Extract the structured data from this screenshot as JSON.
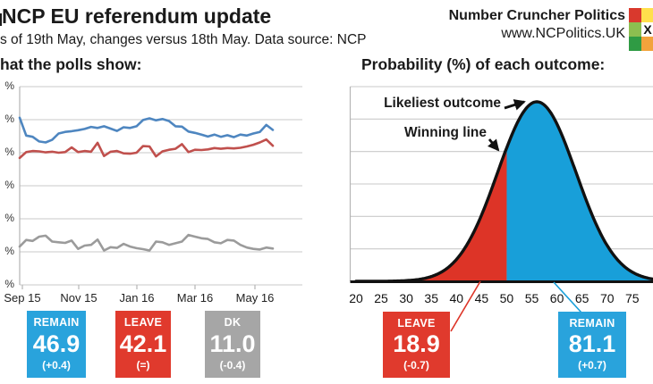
{
  "header": {
    "title": "NCP EU referendum update",
    "subtitle": "s of 19th May, changes versus 18th May. Data source: NCP",
    "brand": "Number Cruncher Politics",
    "website": "www.NCPolitics.UK"
  },
  "logo": {
    "mark": "X",
    "cells": [
      [
        "#d9392d",
        "#ffe04c"
      ],
      [
        "#8cbe50",
        "#ffffff"
      ],
      [
        "#2f9b44",
        "#f2a33c"
      ]
    ]
  },
  "polls_panel": {
    "title": "hat the polls show:",
    "boxes": [
      {
        "label": "REMAIN",
        "value": "46.9",
        "change": "(+0.4)",
        "color": "#29a3dc"
      },
      {
        "label": "LEAVE",
        "value": "42.1",
        "change": "(=)",
        "color": "#e03a2d"
      },
      {
        "label": "DK",
        "value": "11.0",
        "change": "(-0.4)",
        "color": "#a6a6a6"
      }
    ]
  },
  "probability_panel": {
    "title": "Probability (%) of each outcome:",
    "annotations": {
      "peak": "Likeliest outcome",
      "line": "Winning line"
    },
    "boxes": [
      {
        "label": "LEAVE",
        "value": "18.9",
        "change": "(-0.7)",
        "color": "#e03a2d"
      },
      {
        "label": "REMAIN",
        "value": "81.1",
        "change": "(+0.7)",
        "color": "#29a3dc"
      }
    ]
  },
  "chart_data": [
    {
      "type": "line",
      "title": "hat the polls show:",
      "grid": true,
      "x_tick_labels": [
        "Sep 15",
        "Nov 15",
        "Jan 16",
        "Mar 16",
        "May 16"
      ],
      "y_axis": {
        "min": 0,
        "max": 60,
        "step": 10,
        "unit": "%",
        "tick_labels_visible": [
          "%",
          "%",
          "%",
          "%",
          "%",
          "%",
          "%"
        ]
      },
      "series": [
        {
          "name": "REMAIN",
          "color": "#4e86c0",
          "final_value": 46.9,
          "values": [
            50.6,
            45.2,
            44.8,
            43.4,
            43.1,
            43.9,
            45.8,
            46.3,
            46.5,
            46.8,
            47.2,
            47.8,
            47.5,
            48.0,
            47.3,
            46.6,
            47.7,
            47.5,
            48.0,
            49.9,
            50.4,
            49.8,
            50.2,
            49.6,
            48.0,
            47.9,
            46.4,
            46.0,
            45.5,
            44.9,
            45.5,
            44.8,
            45.3,
            44.7,
            45.5,
            45.2,
            45.8,
            46.3,
            48.4,
            46.9
          ]
        },
        {
          "name": "LEAVE",
          "color": "#c0504d",
          "final_value": 42.1,
          "values": [
            38.4,
            40.2,
            40.5,
            40.4,
            40.1,
            40.3,
            40.0,
            40.2,
            41.6,
            40.2,
            40.5,
            40.3,
            43.0,
            39.0,
            40.3,
            40.5,
            39.8,
            39.7,
            40.0,
            42.0,
            41.9,
            38.9,
            40.4,
            40.9,
            41.2,
            42.6,
            40.2,
            40.9,
            40.8,
            41.0,
            41.4,
            41.2,
            41.4,
            41.3,
            41.5,
            41.9,
            42.4,
            43.1,
            44.0,
            42.1
          ]
        },
        {
          "name": "DK",
          "color": "#9b9b9b",
          "final_value": 11.0,
          "values": [
            11.6,
            13.6,
            13.3,
            14.6,
            14.9,
            13.1,
            12.9,
            12.7,
            13.4,
            10.9,
            11.9,
            12.1,
            13.7,
            10.4,
            11.4,
            11.2,
            12.4,
            11.6,
            11.1,
            10.8,
            10.4,
            13.1,
            12.9,
            12.1,
            12.6,
            13.1,
            15.1,
            14.6,
            14.1,
            13.9,
            12.9,
            12.6,
            13.6,
            13.4,
            12.1,
            11.3,
            10.9,
            10.7,
            11.3,
            11.0
          ]
        }
      ]
    },
    {
      "type": "area",
      "title": "Probability (%) of each outcome:",
      "grid": true,
      "x_ticks": [
        20,
        25,
        30,
        35,
        40,
        45,
        50,
        55,
        60,
        65,
        70,
        75
      ],
      "distribution": {
        "shape": "normal",
        "peak_x": 56,
        "sd": 7.8
      },
      "winning_line_x": 50,
      "regions": [
        {
          "name": "LEAVE",
          "side": "below_winning_line",
          "probability": 18.9,
          "color": "#dd3427"
        },
        {
          "name": "REMAIN",
          "side": "above_winning_line",
          "probability": 81.1,
          "color": "#189fd9"
        }
      ],
      "annotations": [
        "Likeliest outcome",
        "Winning line"
      ]
    }
  ]
}
